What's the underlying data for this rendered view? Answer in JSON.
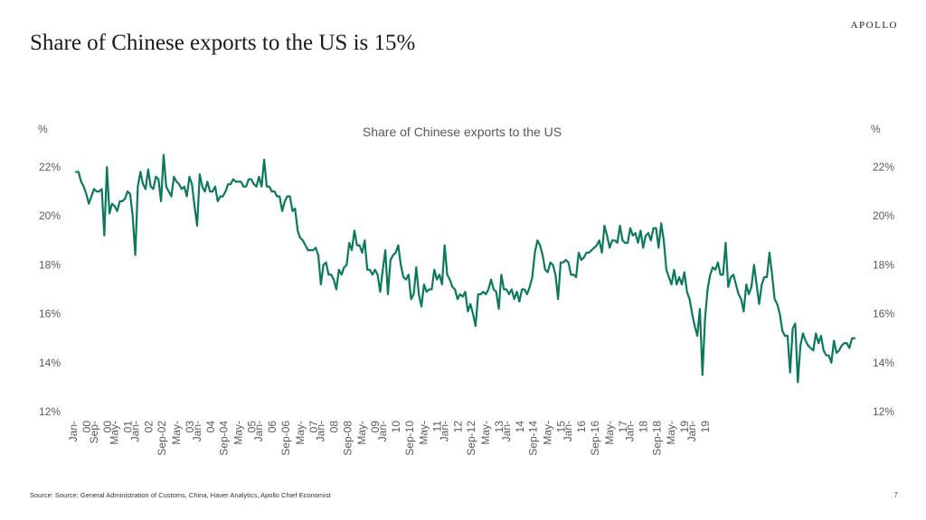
{
  "slide": {
    "title": "Share of Chinese exports to the US is 15%",
    "brand": "APOLLO",
    "source": "Source: Source: General Administration of Customs, China, Haver Analytics, Apollo Chief Economist",
    "page_number": "7"
  },
  "colors": {
    "line": "#0b7a5a",
    "text": "#595959",
    "title": "#1a1a1a"
  },
  "chart_data": {
    "type": "line",
    "title": "Share of Chinese exports to the US",
    "ylabel_left": "%",
    "ylabel_right": "%",
    "ylim": [
      12,
      22.5
    ],
    "yticks": [
      12,
      14,
      16,
      18,
      20,
      22
    ],
    "ytick_labels": [
      "12%",
      "14%",
      "16%",
      "18%",
      "20%",
      "22%"
    ],
    "x_start": "2000-01",
    "x_end": "2019-01",
    "x_tick_labels": [
      [
        "Jan-",
        "00"
      ],
      [
        "Sep-",
        "00"
      ],
      [
        "May-",
        "01"
      ],
      [
        "Jan-",
        "02"
      ],
      [
        "Sep-02"
      ],
      [
        "May-",
        "03"
      ],
      [
        "Jan-",
        "04"
      ],
      [
        "Sep-04"
      ],
      [
        "May-",
        "05"
      ],
      [
        "Jan-",
        "06"
      ],
      [
        "Sep-06"
      ],
      [
        "May-",
        "07"
      ],
      [
        "Jan-",
        "08"
      ],
      [
        "Sep-08"
      ],
      [
        "May-",
        "09"
      ],
      [
        "Jan-",
        "10"
      ],
      [
        "Sep-10"
      ],
      [
        "May-",
        "11"
      ],
      [
        "Jan-",
        "12"
      ],
      [
        "Sep-12"
      ],
      [
        "May-",
        "13"
      ],
      [
        "Jan-",
        "14"
      ],
      [
        "Sep-14"
      ],
      [
        "May-",
        "15"
      ],
      [
        "Jan-",
        "16"
      ],
      [
        "Sep-16"
      ],
      [
        "May-",
        "17"
      ],
      [
        "Jan-",
        "18"
      ],
      [
        "Sep-18"
      ],
      [
        "May-",
        "19"
      ],
      [
        "Jan-",
        "19"
      ]
    ],
    "series": [
      {
        "name": "Share of Chinese exports to the US",
        "values": [
          21.8,
          21.8,
          21.4,
          21.2,
          20.9,
          20.5,
          20.8,
          21.1,
          21.0,
          21.0,
          21.1,
          19.2,
          22.0,
          20.1,
          20.5,
          20.4,
          20.2,
          20.6,
          20.6,
          20.7,
          21.0,
          20.9,
          20.0,
          18.4,
          21.2,
          21.8,
          21.3,
          21.1,
          21.9,
          21.2,
          21.1,
          21.6,
          21.5,
          20.6,
          22.5,
          21.2,
          21.0,
          20.8,
          21.6,
          21.4,
          21.3,
          21.1,
          21.2,
          20.8,
          21.6,
          21.3,
          20.4,
          19.6,
          21.7,
          21.2,
          21.0,
          21.4,
          21.0,
          21.0,
          21.2,
          20.6,
          20.8,
          20.8,
          21.0,
          21.3,
          21.3,
          21.5,
          21.4,
          21.4,
          21.4,
          21.2,
          21.2,
          21.5,
          21.5,
          21.3,
          21.2,
          21.6,
          21.2,
          22.3,
          21.2,
          21.2,
          21.0,
          21.0,
          20.8,
          20.8,
          20.2,
          20.6,
          20.8,
          20.8,
          20.2,
          20.3,
          19.4,
          19.1,
          19.0,
          18.8,
          18.6,
          18.6,
          18.6,
          18.7,
          18.4,
          17.2,
          18.0,
          18.1,
          17.6,
          17.6,
          17.4,
          17.0,
          17.8,
          17.6,
          17.9,
          18.0,
          18.9,
          18.6,
          19.4,
          18.8,
          18.8,
          18.5,
          19.0,
          17.8,
          17.8,
          17.6,
          17.8,
          17.6,
          16.9,
          17.8,
          18.6,
          16.8,
          18.2,
          18.4,
          18.5,
          18.8,
          18.0,
          17.5,
          17.4,
          17.6,
          16.6,
          16.8,
          17.9,
          16.8,
          16.3,
          17.2,
          16.9,
          17.0,
          17.0,
          17.8,
          17.4,
          17.6,
          17.2,
          18.8,
          17.6,
          17.4,
          17.1,
          17.0,
          16.6,
          16.8,
          16.7,
          16.9,
          16.1,
          16.4,
          16.0,
          15.5,
          16.8,
          16.8,
          16.9,
          16.8,
          17.0,
          17.4,
          17.0,
          16.9,
          16.2,
          17.6,
          17.0,
          17.0,
          16.8,
          17.0,
          16.6,
          16.9,
          16.5,
          17.0,
          17.0,
          16.8,
          17.1,
          17.5,
          18.5,
          19.0,
          18.8,
          18.4,
          17.8,
          17.7,
          18.1,
          18.0,
          17.6,
          16.6,
          18.1,
          18.1,
          18.2,
          18.1,
          17.6,
          17.6,
          17.5,
          18.5,
          18.2,
          18.3,
          18.5,
          18.5,
          18.6,
          18.7,
          18.8,
          19.0,
          18.5,
          19.6,
          19.2,
          18.7,
          19.0,
          19.0,
          18.9,
          19.6,
          19.0,
          18.9,
          18.9,
          19.5,
          19.2,
          19.3,
          18.9,
          19.4,
          18.7,
          19.2,
          19.3,
          19.0,
          19.5,
          19.5,
          18.7,
          19.7,
          19.0,
          17.8,
          17.5,
          17.2,
          17.8,
          17.2,
          17.5,
          17.2,
          17.7,
          16.9,
          16.6,
          16.0,
          15.5,
          15.1,
          16.2,
          13.5,
          15.8,
          17.0,
          17.6,
          17.9,
          17.8,
          18.1,
          17.6,
          17.6,
          18.9,
          17.1,
          17.5,
          17.6,
          17.2,
          16.8,
          16.6,
          16.1,
          17.2,
          16.8,
          17.1,
          18.0,
          17.2,
          16.4,
          17.2,
          17.5,
          17.5,
          18.5,
          17.6,
          16.6,
          16.4,
          16.0,
          15.3,
          15.1,
          15.1,
          13.6,
          15.4,
          15.6,
          13.2,
          14.7,
          15.2,
          14.9,
          14.7,
          14.6,
          14.5,
          15.2,
          14.8,
          15.1,
          14.5,
          14.3,
          14.3,
          14.0,
          14.9,
          14.4,
          14.5,
          14.7,
          14.8,
          14.8,
          14.6,
          15.0,
          15.0
        ]
      }
    ]
  }
}
